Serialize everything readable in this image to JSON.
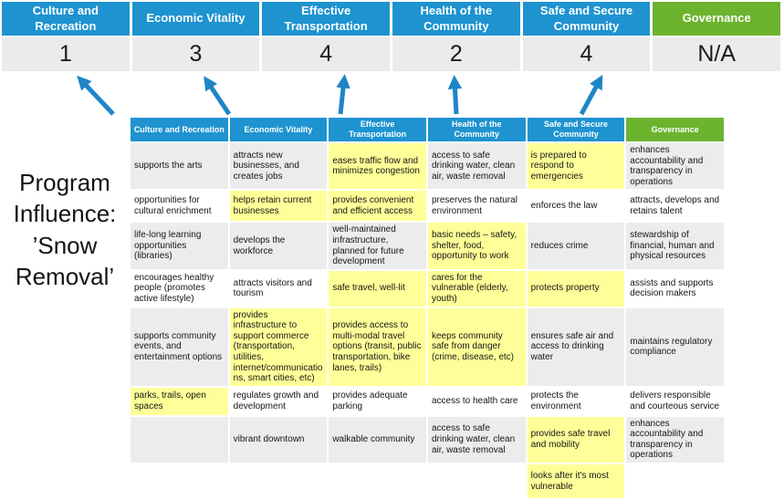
{
  "title": {
    "lines": [
      "Program",
      "Influence:",
      "’Snow",
      "Removal’"
    ],
    "full": "Program Influence: ’Snow Removal’"
  },
  "colors": {
    "header_blue": "#1E93D0",
    "header_green": "#6CB32E",
    "highlight_yellow": "#FFFF99",
    "row_gray": "#ECECEC",
    "score_bg": "#EBEBEB",
    "arrow_blue": "#1E85C7"
  },
  "scorecard": {
    "columns": [
      {
        "label": "Culture and Recreation",
        "score": "1",
        "theme": "blue"
      },
      {
        "label": "Economic Vitality",
        "score": "3",
        "theme": "blue"
      },
      {
        "label": "Effective Transportation",
        "score": "4",
        "theme": "blue"
      },
      {
        "label": "Health of the Community",
        "score": "2",
        "theme": "blue"
      },
      {
        "label": "Safe and Secure Community",
        "score": "4",
        "theme": "blue"
      },
      {
        "label": "Governance",
        "score": "N/A",
        "theme": "green"
      }
    ]
  },
  "matrix": {
    "headers": [
      {
        "label": "Culture and Recreation",
        "theme": "blue"
      },
      {
        "label": "Economic Vitality",
        "theme": "blue"
      },
      {
        "label": "Effective Transportation",
        "theme": "blue"
      },
      {
        "label": "Health of the Community",
        "theme": "blue"
      },
      {
        "label": "Safe and Secure Community",
        "theme": "blue"
      },
      {
        "label": "Governance",
        "theme": "green"
      }
    ],
    "rows": [
      [
        {
          "t": "supports the arts",
          "h": false
        },
        {
          "t": "attracts new businesses, and creates jobs",
          "h": false
        },
        {
          "t": "eases traffic flow and minimizes congestion",
          "h": true
        },
        {
          "t": "access to safe drinking water, clean air, waste removal",
          "h": false
        },
        {
          "t": "is prepared to respond to emergencies",
          "h": true
        },
        {
          "t": "enhances accountability and transparency in operations",
          "h": false
        }
      ],
      [
        {
          "t": "opportunities for cultural enrichment",
          "h": false
        },
        {
          "t": "helps retain current businesses",
          "h": true
        },
        {
          "t": "provides convenient and efficient access",
          "h": true
        },
        {
          "t": "preserves the natural environment",
          "h": false
        },
        {
          "t": "enforces the law",
          "h": false
        },
        {
          "t": "attracts, develops and retains talent",
          "h": false
        }
      ],
      [
        {
          "t": "life-long learning opportunities (libraries)",
          "h": false
        },
        {
          "t": "develops the workforce",
          "h": false
        },
        {
          "t": "well-maintained infrastructure, planned for future development",
          "h": false
        },
        {
          "t": "basic needs – safety, shelter, food, opportunity to work",
          "h": true
        },
        {
          "t": "reduces crime",
          "h": false
        },
        {
          "t": "stewardship of financial, human and physical resources",
          "h": false
        }
      ],
      [
        {
          "t": "encourages healthy people (promotes active lifestyle)",
          "h": false
        },
        {
          "t": "attracts visitors and tourism",
          "h": false
        },
        {
          "t": "safe travel, well-lit",
          "h": true
        },
        {
          "t": "cares for the vulnerable (elderly, youth)",
          "h": true
        },
        {
          "t": "protects property",
          "h": true
        },
        {
          "t": "assists and supports decision makers",
          "h": false
        }
      ],
      [
        {
          "t": "supports community events, and entertainment options",
          "h": false
        },
        {
          "t": "provides infrastructure to support commerce (transportation, utilities, internet/communications, smart cities, etc)",
          "h": true
        },
        {
          "t": "provides access to multi-modal travel options (transit, public transportation, bike lanes, trails)",
          "h": true
        },
        {
          "t": "keeps community safe from danger (crime, disease, etc)",
          "h": true
        },
        {
          "t": "ensures safe air and access to drinking water",
          "h": false
        },
        {
          "t": "maintains regulatory compliance",
          "h": false
        }
      ],
      [
        {
          "t": "parks, trails, open spaces",
          "h": true
        },
        {
          "t": "regulates growth and development",
          "h": false
        },
        {
          "t": "provides adequate parking",
          "h": false
        },
        {
          "t": "access to health care",
          "h": false
        },
        {
          "t": "protects the environment",
          "h": false
        },
        {
          "t": "delivers responsible and courteous service",
          "h": false
        }
      ],
      [
        {
          "t": "",
          "h": false
        },
        {
          "t": "vibrant downtown",
          "h": false
        },
        {
          "t": "walkable community",
          "h": false
        },
        {
          "t": "access to safe drinking water, clean air, waste removal",
          "h": false
        },
        {
          "t": "provides safe travel and mobility",
          "h": true
        },
        {
          "t": "enhances accountability and transparency in operations",
          "h": false
        }
      ],
      [
        {
          "t": "",
          "h": false
        },
        {
          "t": "",
          "h": false
        },
        {
          "t": "",
          "h": false
        },
        {
          "t": "",
          "h": false
        },
        {
          "t": "looks after it's most vulnerable",
          "h": true
        },
        {
          "t": "",
          "h": false
        }
      ]
    ]
  }
}
